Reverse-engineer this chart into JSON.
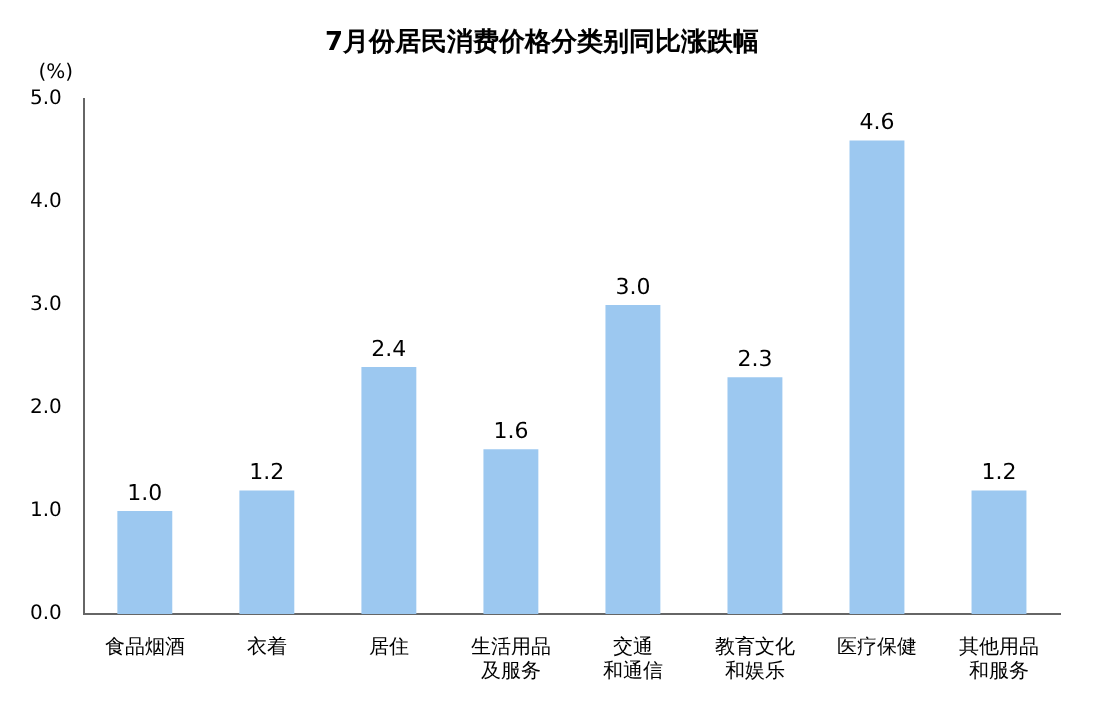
{
  "chart_data": {
    "type": "bar",
    "title": "7月份居民消费价格分类别同比涨跌幅",
    "ylabel": "(%)",
    "categories": [
      "食品烟酒",
      "衣着",
      "居住",
      "生活用品及服务",
      "交通和通信",
      "教育文化和娱乐",
      "医疗保健",
      "其他用品和服务"
    ],
    "values": [
      1.0,
      1.2,
      2.4,
      1.6,
      3.0,
      2.3,
      4.6,
      1.2
    ],
    "color": "#9cc8f0",
    "ylim": [
      0,
      5
    ],
    "yticks": [
      {
        "value": 0,
        "label": "0.0"
      },
      {
        "value": 1,
        "label": "1.0"
      },
      {
        "value": 2,
        "label": "2.0"
      },
      {
        "value": 3,
        "label": "3.0"
      },
      {
        "value": 4,
        "label": "4.0"
      },
      {
        "value": 5,
        "label": "5.0"
      }
    ],
    "value_labels": [
      "1.0",
      "1.2",
      "2.4",
      "1.6",
      "3.0",
      "2.3",
      "4.6",
      "1.2"
    ],
    "grid": false,
    "legend": false
  }
}
